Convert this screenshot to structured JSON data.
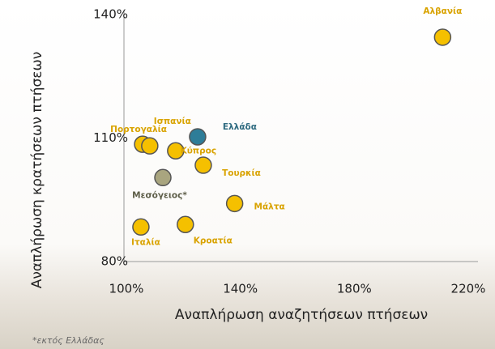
{
  "chart_data": {
    "type": "scatter",
    "x_label": "Αναπλήρωση αναζητήσεων πτήσεων",
    "y_label": "Αναπλήρωση κρατήσεων πτήσεων",
    "footnote": "*εκτός Ελλάδας",
    "labels": [
      "Αλβανία",
      "Ελλάδα",
      "Πορτογαλία",
      "Ισπανία",
      "Κύπρος",
      "Τουρκία",
      "Μεσόγειος*",
      "Μάλτα",
      "Ιταλία",
      "Κροατία"
    ],
    "x": [
      211,
      125,
      105.7,
      108.2,
      117.3,
      127,
      112.8,
      138,
      105.1,
      120.7
    ],
    "values": [
      134.5,
      110.3,
      108.5,
      108.1,
      106.9,
      103.4,
      100.4,
      94.1,
      88.4,
      89
    ],
    "colors": [
      "#f5c000",
      "#2e7d98",
      "#f5c000",
      "#f5c000",
      "#f5c000",
      "#f5c000",
      "#a9a57f",
      "#f5c000",
      "#f5c000",
      "#f5c000"
    ],
    "label_colors": [
      "#d9a300",
      "#2e6a80",
      "#d9a300",
      "#d9a300",
      "#d9a300",
      "#d9a300",
      "#5d5d48",
      "#d9a300",
      "#d9a300",
      "#d9a300"
    ],
    "xlim": [
      100,
      220
    ],
    "ylim": [
      80,
      140
    ],
    "xticks": [
      {
        "value": 100,
        "label": "100%"
      },
      {
        "value": 140,
        "label": "140%"
      },
      {
        "value": 180,
        "label": "180%"
      },
      {
        "value": 220,
        "label": "220%"
      }
    ],
    "yticks": [
      {
        "value": 80,
        "label": "80%"
      },
      {
        "value": 110,
        "label": "110%"
      },
      {
        "value": 140,
        "label": "140%"
      }
    ],
    "grid": false
  }
}
